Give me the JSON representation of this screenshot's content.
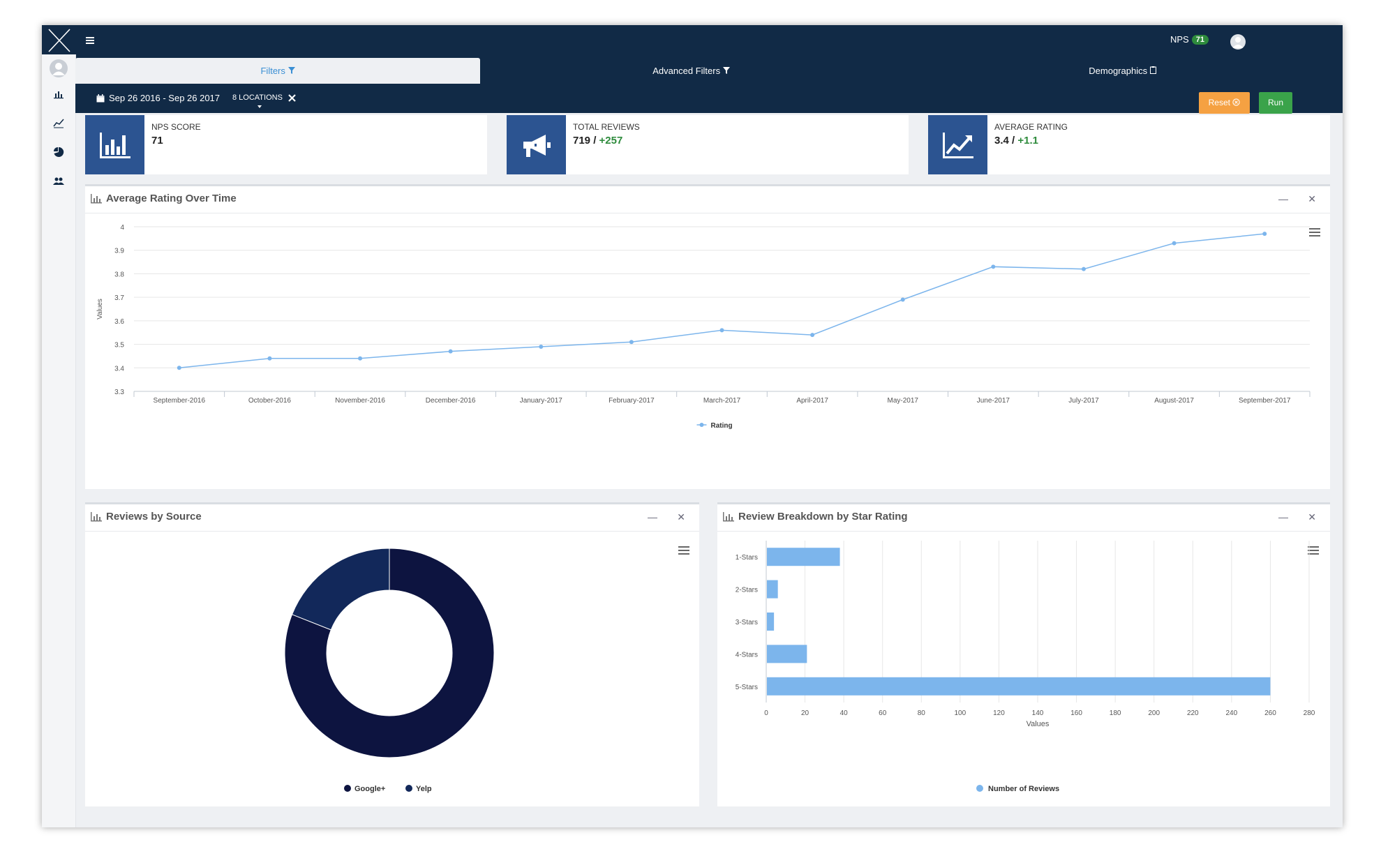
{
  "nav": {
    "nps_label": "NPS",
    "nps_value": "71"
  },
  "tabs": [
    {
      "label": "Filters",
      "icon": "filter-icon",
      "active": true
    },
    {
      "label": "Advanced Filters",
      "icon": "filter-icon",
      "active": false
    },
    {
      "label": "Demographics",
      "icon": "clipboard-icon",
      "active": false
    }
  ],
  "filters": {
    "date_range": "Sep 26 2016 - Sep 26 2017",
    "locations": "8 LOCATIONS",
    "reset_label": "Reset",
    "run_label": "Run"
  },
  "kpis": {
    "nps": {
      "label": "NPS SCORE",
      "value": "71"
    },
    "reviews": {
      "label": "TOTAL REVIEWS",
      "value": "719 / ",
      "delta": "+257"
    },
    "rating": {
      "label": "AVERAGE RATING",
      "value": "3.4 / ",
      "delta": "+1.1"
    }
  },
  "panels": {
    "rating_over_time": {
      "title": "Average Rating Over Time"
    },
    "reviews_by_source": {
      "title": "Reviews by Source"
    },
    "star_breakdown": {
      "title": "Review Breakdown by Star Rating"
    }
  },
  "colors": {
    "navy": "#112a46",
    "accent": "#3a8fd4",
    "kpi_icon_bg": "#2c5491",
    "line_series": "#7cb5ec",
    "bar_series": "#7cb5ec",
    "google_plus": "#0d1440",
    "yelp": "#12285a",
    "success": "#2e8b3c",
    "warning": "#f5a142"
  },
  "chart_data": [
    {
      "type": "line",
      "title": "Average Rating Over Time",
      "x": [
        "September-2016",
        "October-2016",
        "November-2016",
        "December-2016",
        "January-2017",
        "February-2017",
        "March-2017",
        "April-2017",
        "May-2017",
        "June-2017",
        "July-2017",
        "August-2017",
        "September-2017"
      ],
      "series": [
        {
          "name": "Rating",
          "values": [
            3.4,
            3.44,
            3.44,
            3.47,
            3.49,
            3.51,
            3.56,
            3.54,
            3.69,
            3.83,
            3.82,
            3.93,
            3.97
          ]
        }
      ],
      "ylabel": "Values",
      "ylim": [
        3.3,
        4
      ],
      "yticks": [
        "3.3",
        "3.4",
        "3.5",
        "3.6",
        "3.7",
        "3.8",
        "3.9",
        "4"
      ],
      "grid": true,
      "legend": "bottom-center"
    },
    {
      "type": "pie",
      "title": "Reviews by Source",
      "categories": [
        "Google+",
        "Yelp"
      ],
      "values": [
        81,
        19
      ],
      "donut": true,
      "legend": "bottom-center"
    },
    {
      "type": "bar",
      "orientation": "horizontal",
      "title": "Review Breakdown by Star Rating",
      "categories": [
        "1-Stars",
        "2-Stars",
        "3-Stars",
        "4-Stars",
        "5-Stars"
      ],
      "series": [
        {
          "name": "Number of Reviews",
          "values": [
            38,
            6,
            4,
            21,
            260
          ]
        }
      ],
      "xlabel": "Values",
      "xlim": [
        0,
        280
      ],
      "xticks": [
        "0",
        "20",
        "40",
        "60",
        "80",
        "100",
        "120",
        "140",
        "160",
        "180",
        "200",
        "220",
        "240",
        "260",
        "280"
      ],
      "grid": true,
      "legend": "bottom-center"
    }
  ]
}
